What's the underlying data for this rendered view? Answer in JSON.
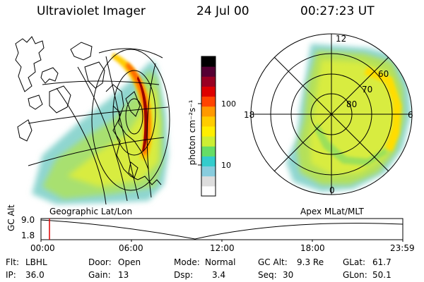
{
  "header": {
    "title": "Ultraviolet Imager",
    "date": "24 Jul 00",
    "time": "00:27:23 UT"
  },
  "left_panel": {
    "caption": "Geographic Lat/Lon"
  },
  "right_panel": {
    "caption": "Apex MLat/MLT",
    "mlt_labels": [
      "12",
      "18",
      "6",
      "0"
    ],
    "mlat_labels": [
      "60",
      "70",
      "80"
    ]
  },
  "colorbar": {
    "unit_label": "photon cm⁻²s⁻¹",
    "ticks": [
      "100",
      "10"
    ],
    "scale": "log",
    "colors": [
      "#ffffff",
      "#dddddd",
      "#88ccdd",
      "#33cccc",
      "#66dd66",
      "#ccee33",
      "#ffee00",
      "#ffcc00",
      "#ff9900",
      "#ff4400",
      "#dd0000",
      "#990022",
      "#550033",
      "#000000"
    ]
  },
  "timeline": {
    "axis_label": "GC Alt",
    "y_ticks": [
      "9.0",
      "1.8"
    ],
    "x_ticks": [
      "00:00",
      "06:00",
      "12:00",
      "18:00",
      "23:59"
    ],
    "marker_color": "#dd0000"
  },
  "info": {
    "flt_label": "Flt:",
    "flt_value": "LBHL",
    "ip_label": "IP:",
    "ip_value": "36.0",
    "door_label": "Door:",
    "door_value": "Open",
    "gain_label": "Gain:",
    "gain_value": "13",
    "mode_label": "Mode:",
    "mode_value": "Normal",
    "dsp_label": "Dsp:",
    "dsp_value": "3.4",
    "gcalt_label": "GC Alt:",
    "gcalt_value": "9.3 Re",
    "seq_label": "Seq:",
    "seq_value": "30",
    "glat_label": "GLat:",
    "glat_value": "61.7",
    "glon_label": "GLon:",
    "glon_value": "50.1"
  }
}
